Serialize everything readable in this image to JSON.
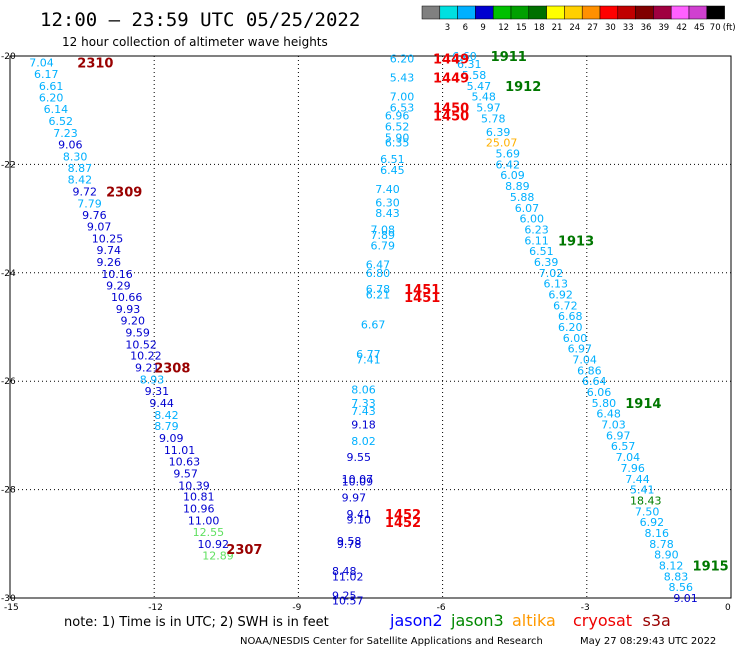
{
  "title": "12:00 — 23:59 UTC 05/25/2022",
  "subtitle": "12 hour collection of altimeter wave heights",
  "note": "note: 1) Time is in UTC; 2) SWH is in feet",
  "credit": "NOAA/NESDIS Center for Satellite Applications and Research",
  "timestamp": "May 27 08:29:43 UTC 2022",
  "legend": {
    "unit": "(ft)",
    "bins": [
      {
        "label": "",
        "color": "#808080"
      },
      {
        "label": "3",
        "color": "#00e0e0"
      },
      {
        "label": "6",
        "color": "#00b0ff"
      },
      {
        "label": "9",
        "color": "#0000d0"
      },
      {
        "label": "12",
        "color": "#00c000"
      },
      {
        "label": "15",
        "color": "#00a000"
      },
      {
        "label": "18",
        "color": "#007000"
      },
      {
        "label": "21",
        "color": "#ffff00"
      },
      {
        "label": "24",
        "color": "#ffd000"
      },
      {
        "label": "27",
        "color": "#ff9000"
      },
      {
        "label": "30",
        "color": "#ff0000"
      },
      {
        "label": "33",
        "color": "#c00000"
      },
      {
        "label": "36",
        "color": "#800000"
      },
      {
        "label": "39",
        "color": "#a00040"
      },
      {
        "label": "42",
        "color": "#ff60ff"
      },
      {
        "label": "45",
        "color": "#d040d0"
      },
      {
        "label": "70",
        "color": "#000000"
      }
    ]
  },
  "satellites": [
    {
      "name": "jason2",
      "color": "#0000ff"
    },
    {
      "name": "jason3",
      "color": "#008800"
    },
    {
      "name": "altika",
      "color": "#ff9900"
    },
    {
      "name": "cryosat",
      "color": "#ee0000"
    },
    {
      "name": "s3a",
      "color": "#990000"
    }
  ],
  "chart_data": {
    "type": "scatter",
    "title": "12:00 — 23:59 UTC 05/25/2022",
    "xlim": [
      -15,
      0
    ],
    "ylim": [
      -30,
      -20
    ],
    "xticks": [
      "-15",
      "-12",
      "-9",
      "-6",
      "-3",
      "0"
    ],
    "yticks": [
      "-20",
      "-22",
      "-24",
      "-26",
      "-28",
      "-30"
    ],
    "grid": true,
    "points": [
      {
        "x": -14.6,
        "y": -20.12,
        "v": "7.04",
        "c": "#00b0ff"
      },
      {
        "x": -14.5,
        "y": -20.33,
        "v": "6.17",
        "c": "#00b0ff"
      },
      {
        "x": -14.4,
        "y": -20.55,
        "v": "6.61",
        "c": "#00b0ff"
      },
      {
        "x": -14.4,
        "y": -20.77,
        "v": "6.20",
        "c": "#00b0ff"
      },
      {
        "x": -14.3,
        "y": -20.98,
        "v": "6.14",
        "c": "#00b0ff"
      },
      {
        "x": -14.2,
        "y": -21.2,
        "v": "6.52",
        "c": "#00b0ff"
      },
      {
        "x": -14.1,
        "y": -21.42,
        "v": "7.23",
        "c": "#00b0ff"
      },
      {
        "x": -14.0,
        "y": -21.63,
        "v": "9.06",
        "c": "#0000d0"
      },
      {
        "x": -13.9,
        "y": -21.85,
        "v": "8.30",
        "c": "#00b0ff"
      },
      {
        "x": -13.8,
        "y": -22.07,
        "v": "8.87",
        "c": "#00b0ff"
      },
      {
        "x": -13.8,
        "y": -22.28,
        "v": "8.42",
        "c": "#00b0ff"
      },
      {
        "x": -13.7,
        "y": -22.5,
        "v": "9.72",
        "c": "#0000d0"
      },
      {
        "x": -13.6,
        "y": -22.72,
        "v": "7.79",
        "c": "#00b0ff"
      },
      {
        "x": -13.5,
        "y": -22.93,
        "v": "9.76",
        "c": "#0000d0"
      },
      {
        "x": -13.4,
        "y": -23.15,
        "v": "9.07",
        "c": "#0000d0"
      },
      {
        "x": -13.3,
        "y": -23.37,
        "v": "10.25",
        "c": "#0000d0"
      },
      {
        "x": -13.2,
        "y": -23.58,
        "v": "9.74",
        "c": "#0000d0"
      },
      {
        "x": -13.2,
        "y": -23.8,
        "v": "9.26",
        "c": "#0000d0"
      },
      {
        "x": -13.1,
        "y": -24.02,
        "v": "10.16",
        "c": "#0000d0"
      },
      {
        "x": -13.0,
        "y": -24.23,
        "v": "9.29",
        "c": "#0000d0"
      },
      {
        "x": -12.9,
        "y": -24.45,
        "v": "10.66",
        "c": "#0000d0"
      },
      {
        "x": -12.8,
        "y": -24.67,
        "v": "9.93",
        "c": "#0000d0"
      },
      {
        "x": -12.7,
        "y": -24.88,
        "v": "9.20",
        "c": "#0000d0"
      },
      {
        "x": -12.6,
        "y": -25.1,
        "v": "9.59",
        "c": "#0000d0"
      },
      {
        "x": -12.6,
        "y": -25.32,
        "v": "10.52",
        "c": "#0000d0"
      },
      {
        "x": -12.5,
        "y": -25.53,
        "v": "10.22",
        "c": "#0000d0"
      },
      {
        "x": -12.4,
        "y": -25.75,
        "v": "9.21",
        "c": "#0000d0"
      },
      {
        "x": -12.3,
        "y": -25.97,
        "v": "8.93",
        "c": "#00b0ff"
      },
      {
        "x": -12.2,
        "y": -26.18,
        "v": "9.31",
        "c": "#0000d0"
      },
      {
        "x": -12.1,
        "y": -26.4,
        "v": "9.44",
        "c": "#0000d0"
      },
      {
        "x": -12.0,
        "y": -26.62,
        "v": "8.42",
        "c": "#00b0ff"
      },
      {
        "x": -12.0,
        "y": -26.83,
        "v": "8.79",
        "c": "#00b0ff"
      },
      {
        "x": -11.9,
        "y": -27.05,
        "v": "9.09",
        "c": "#0000d0"
      },
      {
        "x": -11.8,
        "y": -27.27,
        "v": "11.01",
        "c": "#0000d0"
      },
      {
        "x": -11.7,
        "y": -27.48,
        "v": "10.63",
        "c": "#0000d0"
      },
      {
        "x": -11.6,
        "y": -27.7,
        "v": "9.57",
        "c": "#0000d0"
      },
      {
        "x": -11.5,
        "y": -27.92,
        "v": "10.39",
        "c": "#0000d0"
      },
      {
        "x": -11.4,
        "y": -28.13,
        "v": "10.81",
        "c": "#0000d0"
      },
      {
        "x": -11.4,
        "y": -28.35,
        "v": "10.96",
        "c": "#0000d0"
      },
      {
        "x": -11.3,
        "y": -28.57,
        "v": "11.00",
        "c": "#0000d0"
      },
      {
        "x": -11.2,
        "y": -28.78,
        "v": "12.55",
        "c": "#60e060"
      },
      {
        "x": -11.1,
        "y": -29.0,
        "v": "10.92",
        "c": "#0000d0"
      },
      {
        "x": -11.0,
        "y": -29.22,
        "v": "12.89",
        "c": "#60e060"
      },
      {
        "x": -7.1,
        "y": -20.05,
        "v": "6.20",
        "c": "#00b0ff"
      },
      {
        "x": -7.1,
        "y": -20.4,
        "v": "5.43",
        "c": "#00b0ff"
      },
      {
        "x": -7.1,
        "y": -20.75,
        "v": "7.00",
        "c": "#00b0ff"
      },
      {
        "x": -7.1,
        "y": -20.95,
        "v": "6.53",
        "c": "#00b0ff"
      },
      {
        "x": -7.2,
        "y": -21.1,
        "v": "6.96",
        "c": "#00b0ff"
      },
      {
        "x": -7.2,
        "y": -21.3,
        "v": "6.52",
        "c": "#00b0ff"
      },
      {
        "x": -7.2,
        "y": -21.5,
        "v": "5.90",
        "c": "#00b0ff"
      },
      {
        "x": -7.2,
        "y": -21.6,
        "v": "6.35",
        "c": "#00b0ff"
      },
      {
        "x": -7.3,
        "y": -21.9,
        "v": "6.51",
        "c": "#00b0ff"
      },
      {
        "x": -7.3,
        "y": -22.1,
        "v": "6.45",
        "c": "#00b0ff"
      },
      {
        "x": -7.4,
        "y": -22.45,
        "v": "7.40",
        "c": "#00b0ff"
      },
      {
        "x": -7.4,
        "y": -22.7,
        "v": "6.30",
        "c": "#00b0ff"
      },
      {
        "x": -7.4,
        "y": -22.9,
        "v": "8.43",
        "c": "#00b0ff"
      },
      {
        "x": -7.5,
        "y": -23.2,
        "v": "7.08",
        "c": "#00b0ff"
      },
      {
        "x": -7.5,
        "y": -23.3,
        "v": "7.89",
        "c": "#00b0ff"
      },
      {
        "x": -7.5,
        "y": -23.5,
        "v": "6.79",
        "c": "#00b0ff"
      },
      {
        "x": -7.6,
        "y": -23.85,
        "v": "6.47",
        "c": "#00b0ff"
      },
      {
        "x": -7.6,
        "y": -24.0,
        "v": "6.80",
        "c": "#00b0ff"
      },
      {
        "x": -7.6,
        "y": -24.3,
        "v": "6.78",
        "c": "#00b0ff"
      },
      {
        "x": -7.6,
        "y": -24.4,
        "v": "6.21",
        "c": "#00b0ff"
      },
      {
        "x": -7.7,
        "y": -24.95,
        "v": "6.67",
        "c": "#00b0ff"
      },
      {
        "x": -7.8,
        "y": -25.5,
        "v": "6.77",
        "c": "#00b0ff"
      },
      {
        "x": -7.8,
        "y": -25.6,
        "v": "7.41",
        "c": "#00b0ff"
      },
      {
        "x": -7.9,
        "y": -26.15,
        "v": "8.06",
        "c": "#00b0ff"
      },
      {
        "x": -7.9,
        "y": -26.4,
        "v": "7.33",
        "c": "#00b0ff"
      },
      {
        "x": -7.9,
        "y": -26.55,
        "v": "7.43",
        "c": "#00b0ff"
      },
      {
        "x": -7.9,
        "y": -26.8,
        "v": "9.18",
        "c": "#0000d0"
      },
      {
        "x": -7.9,
        "y": -27.1,
        "v": "8.02",
        "c": "#00b0ff"
      },
      {
        "x": -8.0,
        "y": -27.4,
        "v": "9.55",
        "c": "#0000d0"
      },
      {
        "x": -8.1,
        "y": -27.8,
        "v": "10.07",
        "c": "#0000d0"
      },
      {
        "x": -8.1,
        "y": -27.85,
        "v": "10.09",
        "c": "#0000d0"
      },
      {
        "x": -8.1,
        "y": -28.15,
        "v": "9.97",
        "c": "#0000d0"
      },
      {
        "x": -8.0,
        "y": -28.45,
        "v": "9.41",
        "c": "#0000d0"
      },
      {
        "x": -8.0,
        "y": -28.55,
        "v": "9.10",
        "c": "#0000d0"
      },
      {
        "x": -8.2,
        "y": -28.95,
        "v": "9.58",
        "c": "#0000d0"
      },
      {
        "x": -8.2,
        "y": -29.0,
        "v": "9.78",
        "c": "#0000d0"
      },
      {
        "x": -8.3,
        "y": -29.5,
        "v": "8.48",
        "c": "#0000d0"
      },
      {
        "x": -8.3,
        "y": -29.6,
        "v": "11.02",
        "c": "#0000d0"
      },
      {
        "x": -8.3,
        "y": -29.95,
        "v": "9.25",
        "c": "#0000d0"
      },
      {
        "x": -8.3,
        "y": -30.05,
        "v": "10.57",
        "c": "#0000d0"
      },
      {
        "x": -5.8,
        "y": -20.0,
        "v": "6.60",
        "c": "#00b0ff"
      },
      {
        "x": -5.7,
        "y": -20.15,
        "v": "6.31",
        "c": "#00b0ff"
      },
      {
        "x": -5.6,
        "y": -20.35,
        "v": "5.58",
        "c": "#00b0ff"
      },
      {
        "x": -5.5,
        "y": -20.55,
        "v": "5.47",
        "c": "#00b0ff"
      },
      {
        "x": -5.4,
        "y": -20.75,
        "v": "5.48",
        "c": "#00b0ff"
      },
      {
        "x": -5.3,
        "y": -20.95,
        "v": "5.97",
        "c": "#00b0ff"
      },
      {
        "x": -5.2,
        "y": -21.15,
        "v": "5.78",
        "c": "#00b0ff"
      },
      {
        "x": -5.1,
        "y": -21.4,
        "v": "6.39",
        "c": "#00b0ff"
      },
      {
        "x": -5.1,
        "y": -21.6,
        "v": "25.07",
        "c": "#ffb000"
      },
      {
        "x": -4.9,
        "y": -21.8,
        "v": "5.69",
        "c": "#00b0ff"
      },
      {
        "x": -4.9,
        "y": -22.0,
        "v": "6.42",
        "c": "#00b0ff"
      },
      {
        "x": -4.8,
        "y": -22.2,
        "v": "6.09",
        "c": "#00b0ff"
      },
      {
        "x": -4.7,
        "y": -22.4,
        "v": "8.89",
        "c": "#00b0ff"
      },
      {
        "x": -4.6,
        "y": -22.6,
        "v": "5.88",
        "c": "#00b0ff"
      },
      {
        "x": -4.5,
        "y": -22.8,
        "v": "6.07",
        "c": "#00b0ff"
      },
      {
        "x": -4.4,
        "y": -23.0,
        "v": "6.00",
        "c": "#00b0ff"
      },
      {
        "x": -4.3,
        "y": -23.2,
        "v": "6.23",
        "c": "#00b0ff"
      },
      {
        "x": -4.3,
        "y": -23.4,
        "v": "6.11",
        "c": "#00b0ff"
      },
      {
        "x": -4.2,
        "y": -23.6,
        "v": "6.51",
        "c": "#00b0ff"
      },
      {
        "x": -4.1,
        "y": -23.8,
        "v": "6.39",
        "c": "#00b0ff"
      },
      {
        "x": -4.0,
        "y": -24.0,
        "v": "7.02",
        "c": "#00b0ff"
      },
      {
        "x": -3.9,
        "y": -24.2,
        "v": "6.13",
        "c": "#00b0ff"
      },
      {
        "x": -3.8,
        "y": -24.4,
        "v": "6.92",
        "c": "#00b0ff"
      },
      {
        "x": -3.7,
        "y": -24.6,
        "v": "6.72",
        "c": "#00b0ff"
      },
      {
        "x": -3.6,
        "y": -24.8,
        "v": "6.68",
        "c": "#00b0ff"
      },
      {
        "x": -3.6,
        "y": -25.0,
        "v": "6.20",
        "c": "#00b0ff"
      },
      {
        "x": -3.5,
        "y": -25.2,
        "v": "6.00",
        "c": "#00b0ff"
      },
      {
        "x": -3.4,
        "y": -25.4,
        "v": "6.97",
        "c": "#00b0ff"
      },
      {
        "x": -3.3,
        "y": -25.6,
        "v": "7.04",
        "c": "#00b0ff"
      },
      {
        "x": -3.2,
        "y": -25.8,
        "v": "6.86",
        "c": "#00b0ff"
      },
      {
        "x": -3.1,
        "y": -26.0,
        "v": "6.64",
        "c": "#00b0ff"
      },
      {
        "x": -3.0,
        "y": -26.2,
        "v": "6.06",
        "c": "#00b0ff"
      },
      {
        "x": -2.9,
        "y": -26.4,
        "v": "5.80",
        "c": "#00b0ff"
      },
      {
        "x": -2.8,
        "y": -26.6,
        "v": "6.48",
        "c": "#00b0ff"
      },
      {
        "x": -2.7,
        "y": -26.8,
        "v": "7.03",
        "c": "#00b0ff"
      },
      {
        "x": -2.6,
        "y": -27.0,
        "v": "6.97",
        "c": "#00b0ff"
      },
      {
        "x": -2.5,
        "y": -27.2,
        "v": "6.57",
        "c": "#00b0ff"
      },
      {
        "x": -2.4,
        "y": -27.4,
        "v": "7.04",
        "c": "#00b0ff"
      },
      {
        "x": -2.3,
        "y": -27.6,
        "v": "7.96",
        "c": "#00b0ff"
      },
      {
        "x": -2.2,
        "y": -27.8,
        "v": "7.44",
        "c": "#00b0ff"
      },
      {
        "x": -2.1,
        "y": -28.0,
        "v": "5.41",
        "c": "#00b0ff"
      },
      {
        "x": -2.1,
        "y": -28.2,
        "v": "18.43",
        "c": "#008000"
      },
      {
        "x": -2.0,
        "y": -28.4,
        "v": "7.50",
        "c": "#00b0ff"
      },
      {
        "x": -1.9,
        "y": -28.6,
        "v": "6.92",
        "c": "#00b0ff"
      },
      {
        "x": -1.8,
        "y": -28.8,
        "v": "8.16",
        "c": "#00b0ff"
      },
      {
        "x": -1.7,
        "y": -29.0,
        "v": "8.78",
        "c": "#00b0ff"
      },
      {
        "x": -1.6,
        "y": -29.2,
        "v": "8.90",
        "c": "#00b0ff"
      },
      {
        "x": -1.5,
        "y": -29.4,
        "v": "8.12",
        "c": "#00b0ff"
      },
      {
        "x": -1.4,
        "y": -29.6,
        "v": "8.83",
        "c": "#00b0ff"
      },
      {
        "x": -1.3,
        "y": -29.8,
        "v": "8.56",
        "c": "#00b0ff"
      },
      {
        "x": -1.2,
        "y": -30.0,
        "v": "9.01",
        "c": "#0000d0"
      }
    ],
    "annotations": [
      {
        "x": -13.6,
        "y": -20.12,
        "text": "2310",
        "c": "#990000"
      },
      {
        "x": -13.0,
        "y": -22.5,
        "text": "2309",
        "c": "#990000"
      },
      {
        "x": -12.0,
        "y": -25.75,
        "text": "2308",
        "c": "#990000"
      },
      {
        "x": -10.5,
        "y": -29.1,
        "text": "2307",
        "c": "#990000"
      },
      {
        "x": -6.2,
        "y": -20.05,
        "text": "1449",
        "c": "#ee0000"
      },
      {
        "x": -6.2,
        "y": -20.4,
        "text": "1449",
        "c": "#ee0000"
      },
      {
        "x": -6.2,
        "y": -20.95,
        "text": "1450",
        "c": "#ee0000"
      },
      {
        "x": -6.2,
        "y": -21.1,
        "text": "1450",
        "c": "#ee0000"
      },
      {
        "x": -6.8,
        "y": -24.3,
        "text": "1451",
        "c": "#ee0000"
      },
      {
        "x": -6.8,
        "y": -24.45,
        "text": "1451",
        "c": "#ee0000"
      },
      {
        "x": -7.2,
        "y": -28.45,
        "text": "1452",
        "c": "#ee0000"
      },
      {
        "x": -7.2,
        "y": -28.6,
        "text": "1452",
        "c": "#ee0000"
      },
      {
        "x": -5.0,
        "y": -20.0,
        "text": "1911",
        "c": "#007700"
      },
      {
        "x": -4.7,
        "y": -20.55,
        "text": "1912",
        "c": "#007700"
      },
      {
        "x": -3.6,
        "y": -23.4,
        "text": "1913",
        "c": "#007700"
      },
      {
        "x": -2.2,
        "y": -26.4,
        "text": "1914",
        "c": "#007700"
      },
      {
        "x": -0.8,
        "y": -29.4,
        "text": "1915",
        "c": "#007700"
      }
    ]
  }
}
